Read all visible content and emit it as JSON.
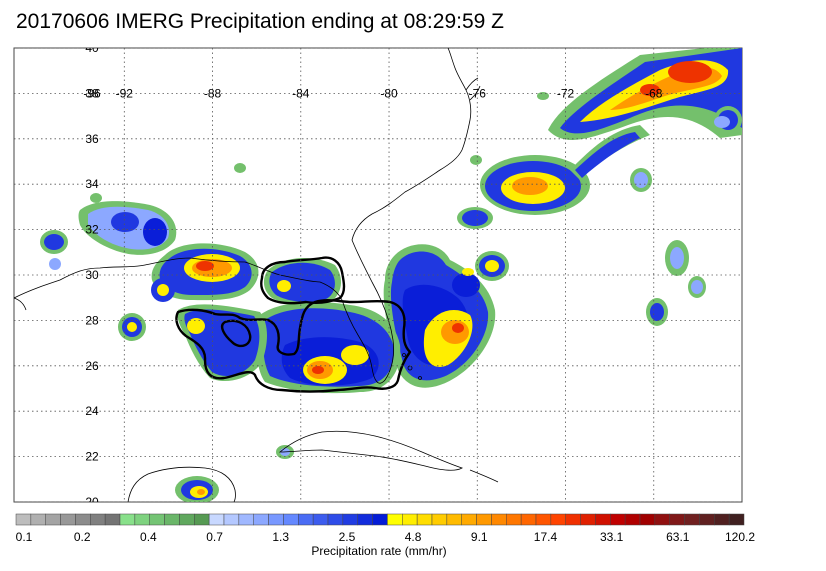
{
  "title": "20170606 IMERG Precipitation ending at 08:29:59 Z",
  "map": {
    "lon_range": [
      -97,
      -64
    ],
    "lat_range": [
      20,
      40
    ],
    "grid": true,
    "lat_ticks": [
      "20",
      "22",
      "24",
      "26",
      "28",
      "30",
      "32",
      "34",
      "36",
      "38",
      "40"
    ],
    "lon_ticks": [
      "-92",
      "-88",
      "-84",
      "-80",
      "-76",
      "-72",
      "-68"
    ],
    "lon_tick_overlap_glyph": "-96"
  },
  "colorbar": {
    "title": "Precipitation rate (mm/hr)",
    "labels": [
      "0.1",
      "0.2",
      "0.4",
      "0.7",
      "1.3",
      "2.5",
      "4.8",
      "9.1",
      "17.4",
      "33.1",
      "63.1",
      "120.2"
    ],
    "colors": [
      "#bdbdbd",
      "#b0b0b0",
      "#a4a4a4",
      "#989898",
      "#8c8c8c",
      "#808080",
      "#747474",
      "#88e08a",
      "#7ed27f",
      "#74c474",
      "#6ab669",
      "#60a85e",
      "#569a53",
      "#c8d8ff",
      "#b4c8ff",
      "#a0b8ff",
      "#8ca8ff",
      "#7898ff",
      "#6488ff",
      "#4a6cf4",
      "#3c5cee",
      "#2e4ce8",
      "#203ce2",
      "#122cdc",
      "#041cd6",
      "#ffff00",
      "#ffee00",
      "#ffdd00",
      "#ffcc00",
      "#ffbb00",
      "#ffaa00",
      "#ff9900",
      "#ff8800",
      "#ff7700",
      "#ff6600",
      "#ff5500",
      "#ff4400",
      "#f03000",
      "#e02000",
      "#d01000",
      "#c00000",
      "#b00000",
      "#a00000",
      "#901010",
      "#801818",
      "#702020",
      "#602020",
      "#502020",
      "#402020"
    ]
  },
  "precip_colors": {
    "green": "#74c06c",
    "light_blue": "#8ca8ff",
    "blue": "#2038e0",
    "deep_blue": "#0a1ed8",
    "yellow": "#ffee00",
    "orange": "#ff9900",
    "red": "#ee3300"
  }
}
